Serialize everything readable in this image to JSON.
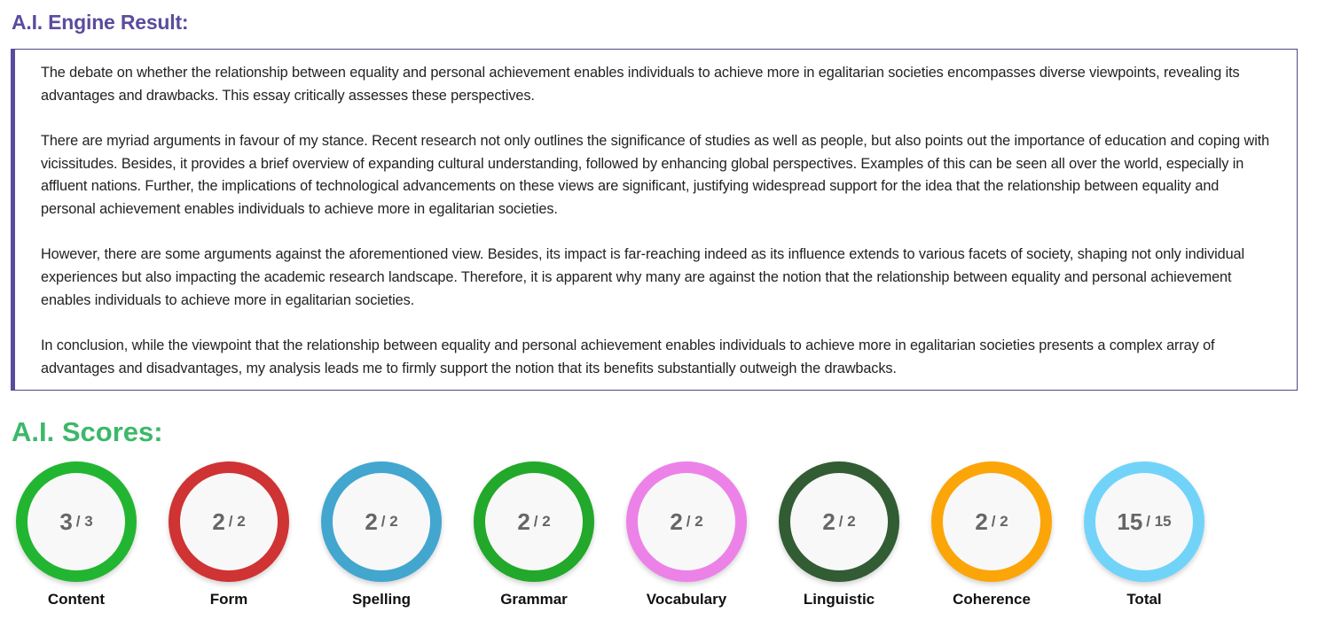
{
  "result": {
    "title": "A.I. Engine Result:",
    "paragraphs": [
      "The debate on whether the relationship between equality and personal achievement enables individuals to achieve more in egalitarian societies encompasses diverse viewpoints, revealing its advantages and drawbacks. This essay critically assesses these perspectives.",
      "There are myriad arguments in favour of my stance. Recent research not only outlines the significance of studies as well as people, but also points out the importance of education and coping with vicissitudes. Besides, it provides a brief overview of expanding cultural understanding, followed by enhancing global perspectives. Examples of this can be seen all over the world, especially in affluent nations. Further, the implications of technological advancements on these views are significant, justifying widespread support for the idea that the relationship between equality and personal achievement enables individuals to achieve more in egalitarian societies.",
      "However, there are some arguments against the aforementioned view. Besides, its impact is far-reaching indeed as its influence extends to various facets of society, shaping not only individual experiences but also impacting the academic research landscape. Therefore, it is apparent why many are against the notion that the relationship between equality and personal achievement enables individuals to achieve more in egalitarian societies.",
      "In conclusion, while the viewpoint that the relationship between equality and personal achievement enables individuals to achieve more in egalitarian societies presents a complex array of advantages and disadvantages, my analysis leads me to firmly support the notion that its benefits substantially outweigh the drawbacks."
    ]
  },
  "scores": {
    "title": "A.I. Scores:",
    "items": [
      {
        "label": "Content",
        "value": "3",
        "max": "/ 3",
        "color": "#22b531"
      },
      {
        "label": "Form",
        "value": "2",
        "max": "/ 2",
        "color": "#cf3333"
      },
      {
        "label": "Spelling",
        "value": "2",
        "max": "/ 2",
        "color": "#42a6cf"
      },
      {
        "label": "Grammar",
        "value": "2",
        "max": "/ 2",
        "color": "#22a82a"
      },
      {
        "label": "Vocabulary",
        "value": "2",
        "max": "/ 2",
        "color": "#ec82e8"
      },
      {
        "label": "Linguistic",
        "value": "2",
        "max": "/ 2",
        "color": "#325c34"
      },
      {
        "label": "Coherence",
        "value": "2",
        "max": "/ 2",
        "color": "#fba508"
      },
      {
        "label": "Total",
        "value": "15",
        "max": "/ 15",
        "color": "#72d3f9"
      }
    ]
  }
}
